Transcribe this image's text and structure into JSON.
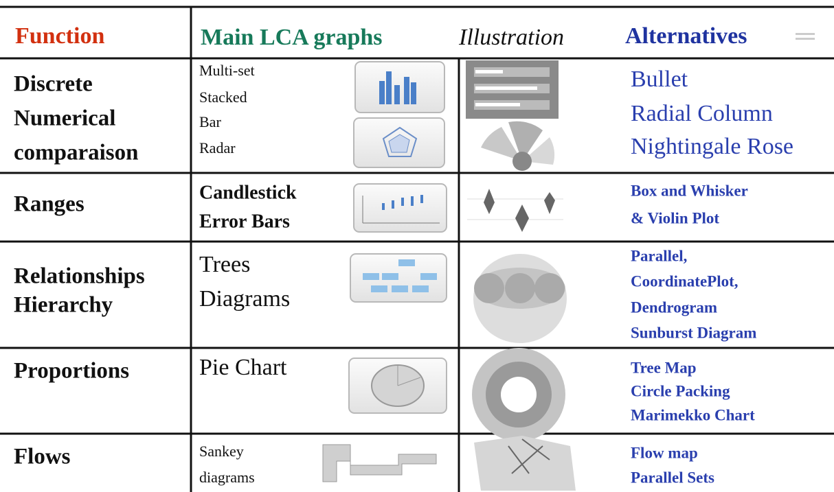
{
  "header": {
    "function": "Function",
    "main": "Main LCA graphs",
    "illustration": "Illustration",
    "alternatives": "Alternatives"
  },
  "rows": [
    {
      "function": [
        "Discrete",
        "Numerical",
        "comparaison"
      ],
      "main": [
        "Multi-set",
        "Stacked",
        "Bar",
        "Radar"
      ],
      "alternatives": [
        "Bullet",
        "Radial Column",
        "Nightingale Rose"
      ]
    },
    {
      "function": [
        "Ranges"
      ],
      "main": [
        "Candlestick",
        "Error Bars"
      ],
      "alternatives": [
        "Box and Whisker",
        "& Violin Plot"
      ]
    },
    {
      "function": [
        "Relationships",
        "Hierarchy"
      ],
      "main": [
        "Trees",
        "Diagrams"
      ],
      "alternatives": [
        "Parallel,",
        "CoordinatePlot,",
        "Dendrogram",
        "Sunburst Diagram"
      ]
    },
    {
      "function": [
        "Proportions"
      ],
      "main": [
        "Pie Chart"
      ],
      "alternatives": [
        "Tree Map",
        "Circle Packing",
        "Marimekko Chart"
      ]
    },
    {
      "function": [
        "Flows"
      ],
      "main": [
        "Sankey",
        "diagrams"
      ],
      "alternatives": [
        "Flow map",
        "Parallel Sets"
      ]
    }
  ]
}
